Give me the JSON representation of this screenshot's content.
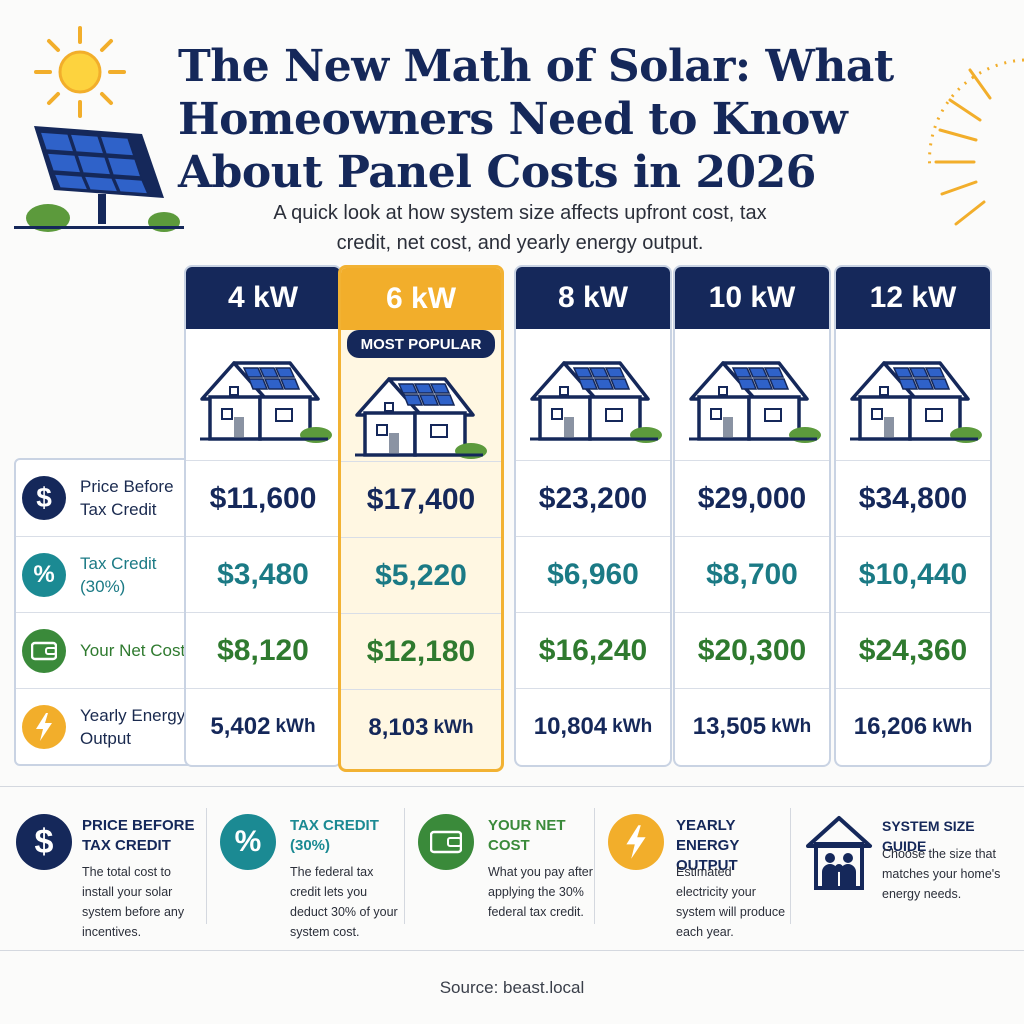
{
  "header": {
    "title": "The New Math of Solar: What Homeowners Need to Know About Panel Costs in 2026",
    "subtitle": "A quick look at how system size affects upfront cost, tax credit, net cost, and yearly energy output."
  },
  "rows": [
    {
      "label": "Price Before Tax Credit",
      "icon": "dollar-icon",
      "color": "#15285a"
    },
    {
      "label": "Tax Credit (30%)",
      "icon": "percent-icon",
      "color": "#1b8a93"
    },
    {
      "label": "Your Net Cost",
      "icon": "wallet-icon",
      "color": "#3a8a3a"
    },
    {
      "label": "Yearly Energy Output",
      "icon": "lightning-icon",
      "color": "#f2ae2b"
    }
  ],
  "columns": [
    {
      "size": "4 kW",
      "price": "$11,600",
      "credit": "$3,480",
      "net": "$8,120",
      "energy": "5,402",
      "unit": "kWh"
    },
    {
      "size": "6 kW",
      "badge": "MOST POPULAR",
      "price": "$17,400",
      "credit": "$5,220",
      "net": "$12,180",
      "energy": "8,103",
      "unit": "kWh"
    },
    {
      "size": "8 kW",
      "price": "$23,200",
      "credit": "$6,960",
      "net": "$16,240",
      "energy": "10,804",
      "unit": "kWh"
    },
    {
      "size": "10 kW",
      "price": "$29,000",
      "credit": "$8,700",
      "net": "$20,300",
      "energy": "13,505",
      "unit": "kWh"
    },
    {
      "size": "12 kW",
      "price": "$34,800",
      "credit": "$10,440",
      "net": "$24,360",
      "energy": "16,206",
      "unit": "kWh"
    }
  ],
  "legend": [
    {
      "title": "PRICE BEFORE TAX CREDIT",
      "desc": "The total cost to install your solar system before any incentives.",
      "icon": "dollar-icon",
      "color": "#15285a"
    },
    {
      "title": "TAX CREDIT (30%)",
      "desc": "The federal tax credit lets you deduct 30% of your system cost.",
      "icon": "percent-icon",
      "color": "#1b8a93"
    },
    {
      "title": "YOUR NET COST",
      "desc": "What you pay after applying the 30% federal tax credit.",
      "icon": "wallet-icon",
      "color": "#3a8a3a"
    },
    {
      "title": "YEARLY ENERGY OUTPUT",
      "desc": "Estimated electricity your system will produce each year.",
      "icon": "lightning-icon",
      "color": "#f2ae2b"
    },
    {
      "title": "SYSTEM SIZE GUIDE",
      "desc": "Choose the size that matches your home's energy needs.",
      "icon": "family-house-icon",
      "color": "#15285a"
    }
  ],
  "footer": {
    "source": "Source: beast.local"
  }
}
